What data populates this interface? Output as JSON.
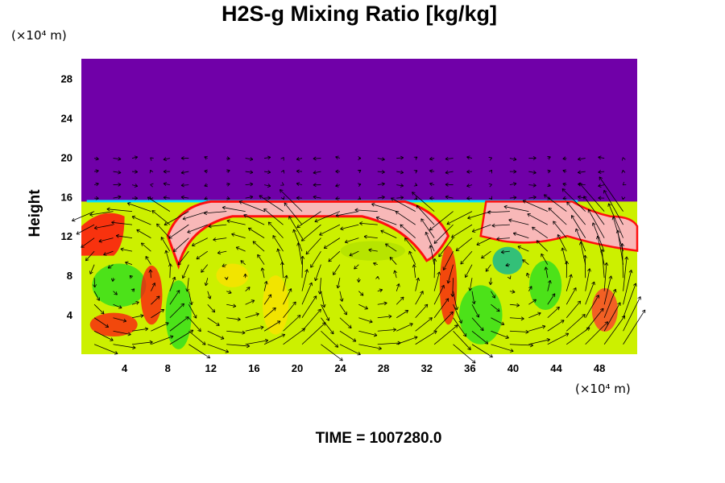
{
  "chart_data": {
    "type": "heatmap",
    "title": "H2S-g Mixing Ratio [kg/kg]",
    "ylabel": "Height",
    "xlabel": "",
    "x_units": "(×10⁴ m)",
    "y_units": "(×10⁴ m)",
    "xlim": [
      0,
      51.5
    ],
    "ylim": [
      0,
      30
    ],
    "x_ticks": [
      "4",
      "8",
      "12",
      "16",
      "20",
      "24",
      "28",
      "32",
      "36",
      "40",
      "44",
      "48"
    ],
    "y_ticks": [
      "4",
      "8",
      "12",
      "16",
      "20",
      "24",
      "28"
    ],
    "footer": "TIME = 1007280.0",
    "overlay": "velocity vector arrows",
    "colors": {
      "background_top": "#7000a8",
      "lower_field": "#ccf000",
      "high_values": "#f8b8b8",
      "edge_red": "#ff1010",
      "mid_green": "#22dd22"
    },
    "features": [
      {
        "name": "upper layer",
        "value_level": "lowest",
        "height_range": [
          15.5,
          30
        ]
      },
      {
        "name": "mixed layer",
        "value_level": "moderate",
        "height_range": [
          0,
          15.5
        ]
      },
      {
        "name": "anvil cap",
        "value_level": "highest",
        "x_range": [
          8,
          34
        ],
        "height_range": [
          13,
          15.5
        ]
      },
      {
        "name": "right anvil cap",
        "value_level": "highest",
        "x_range": [
          37,
          51.5
        ],
        "height_range": [
          11,
          15.5
        ]
      }
    ]
  }
}
